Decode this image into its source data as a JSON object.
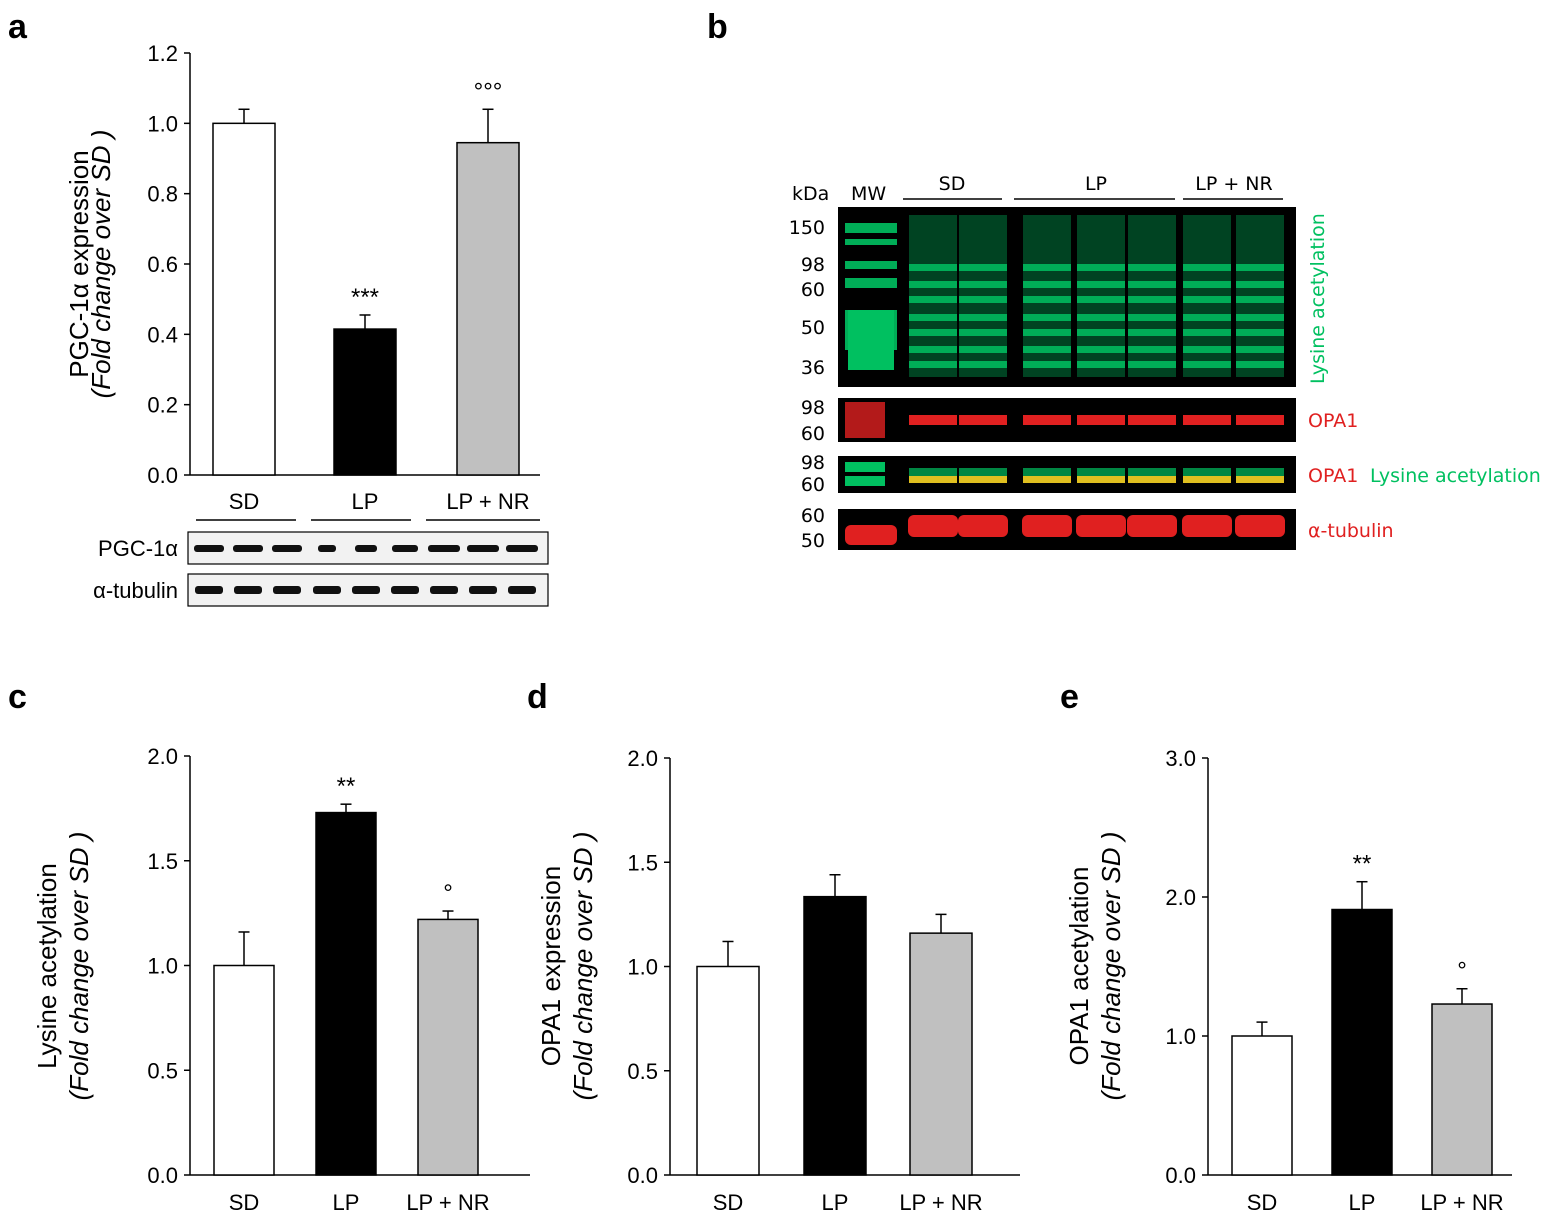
{
  "panel_labels": {
    "a": "a",
    "b": "b",
    "c": "c",
    "d": "d",
    "e": "e"
  },
  "chart_data": [
    {
      "id": "a",
      "type": "bar",
      "categories": [
        "SD",
        "LP",
        "LP + NR"
      ],
      "values": [
        1.0,
        0.415,
        0.945
      ],
      "errors": [
        0.04,
        0.04,
        0.095
      ],
      "fills": [
        "#ffffff",
        "#000000",
        "#c0c0c0"
      ],
      "significance": [
        "",
        "***",
        "°°°"
      ],
      "ylim": [
        0,
        1.2
      ],
      "yticks": [
        "0.0",
        "0.2",
        "0.4",
        "0.6",
        "0.8",
        "1.0",
        "1.2"
      ],
      "ylabel_line1": "PGC-1α expression",
      "ylabel_line2": "(Fold change over SD )",
      "blot_rows": [
        "PGC-1α",
        "α-tubulin"
      ]
    },
    {
      "id": "c",
      "type": "bar",
      "categories": [
        "SD",
        "LP",
        "LP + NR"
      ],
      "values": [
        1.0,
        1.73,
        1.22
      ],
      "errors": [
        0.16,
        0.04,
        0.04
      ],
      "fills": [
        "#ffffff",
        "#000000",
        "#c0c0c0"
      ],
      "significance": [
        "",
        "**",
        "°"
      ],
      "ylim": [
        0,
        2.0
      ],
      "yticks": [
        "0.0",
        "0.5",
        "1.0",
        "1.5",
        "2.0"
      ],
      "ylabel_line1": "Lysine acetylation",
      "ylabel_line2": "(Fold change over SD )"
    },
    {
      "id": "d",
      "type": "bar",
      "categories": [
        "SD",
        "LP",
        "LP + NR"
      ],
      "values": [
        1.0,
        1.335,
        1.16
      ],
      "errors": [
        0.12,
        0.105,
        0.09
      ],
      "fills": [
        "#ffffff",
        "#000000",
        "#c0c0c0"
      ],
      "significance": [
        "",
        "",
        ""
      ],
      "ylim": [
        0,
        2.0
      ],
      "yticks": [
        "0.0",
        "0.5",
        "1.0",
        "1.5",
        "2.0"
      ],
      "ylabel_line1": "OPA1 expression",
      "ylabel_line2": "(Fold change over SD )"
    },
    {
      "id": "e",
      "type": "bar",
      "categories": [
        "SD",
        "LP",
        "LP + NR"
      ],
      "values": [
        1.0,
        1.91,
        1.23
      ],
      "errors": [
        0.1,
        0.2,
        0.11
      ],
      "fills": [
        "#ffffff",
        "#000000",
        "#c0c0c0"
      ],
      "significance": [
        "",
        "**",
        "°"
      ],
      "ylim": [
        0,
        3.0
      ],
      "yticks": [
        "0.0",
        "1.0",
        "2.0",
        "3.0"
      ],
      "ylabel_line1": "OPA1 acetylation",
      "ylabel_line2": "(Fold change over SD )"
    }
  ],
  "western_b": {
    "kda_label": "kDa",
    "mw_label": "MW",
    "groups": [
      "SD",
      "LP",
      "LP + NR"
    ],
    "markers_top": [
      "150",
      "98",
      "60",
      "50",
      "36"
    ],
    "markers_opa1": [
      "98",
      "60"
    ],
    "markers_merge": [
      "98",
      "60"
    ],
    "markers_tub": [
      "60",
      "50"
    ],
    "label_lysine": "Lysine acetylation",
    "label_opa1": "OPA1",
    "label_merge_red": "OPA1",
    "label_merge_green": "Lysine acetylation",
    "label_tubulin": "α-tubulin"
  },
  "colors": {
    "green": "#00c060",
    "red": "#e02020",
    "bar_gray": "#c0c0c0"
  }
}
